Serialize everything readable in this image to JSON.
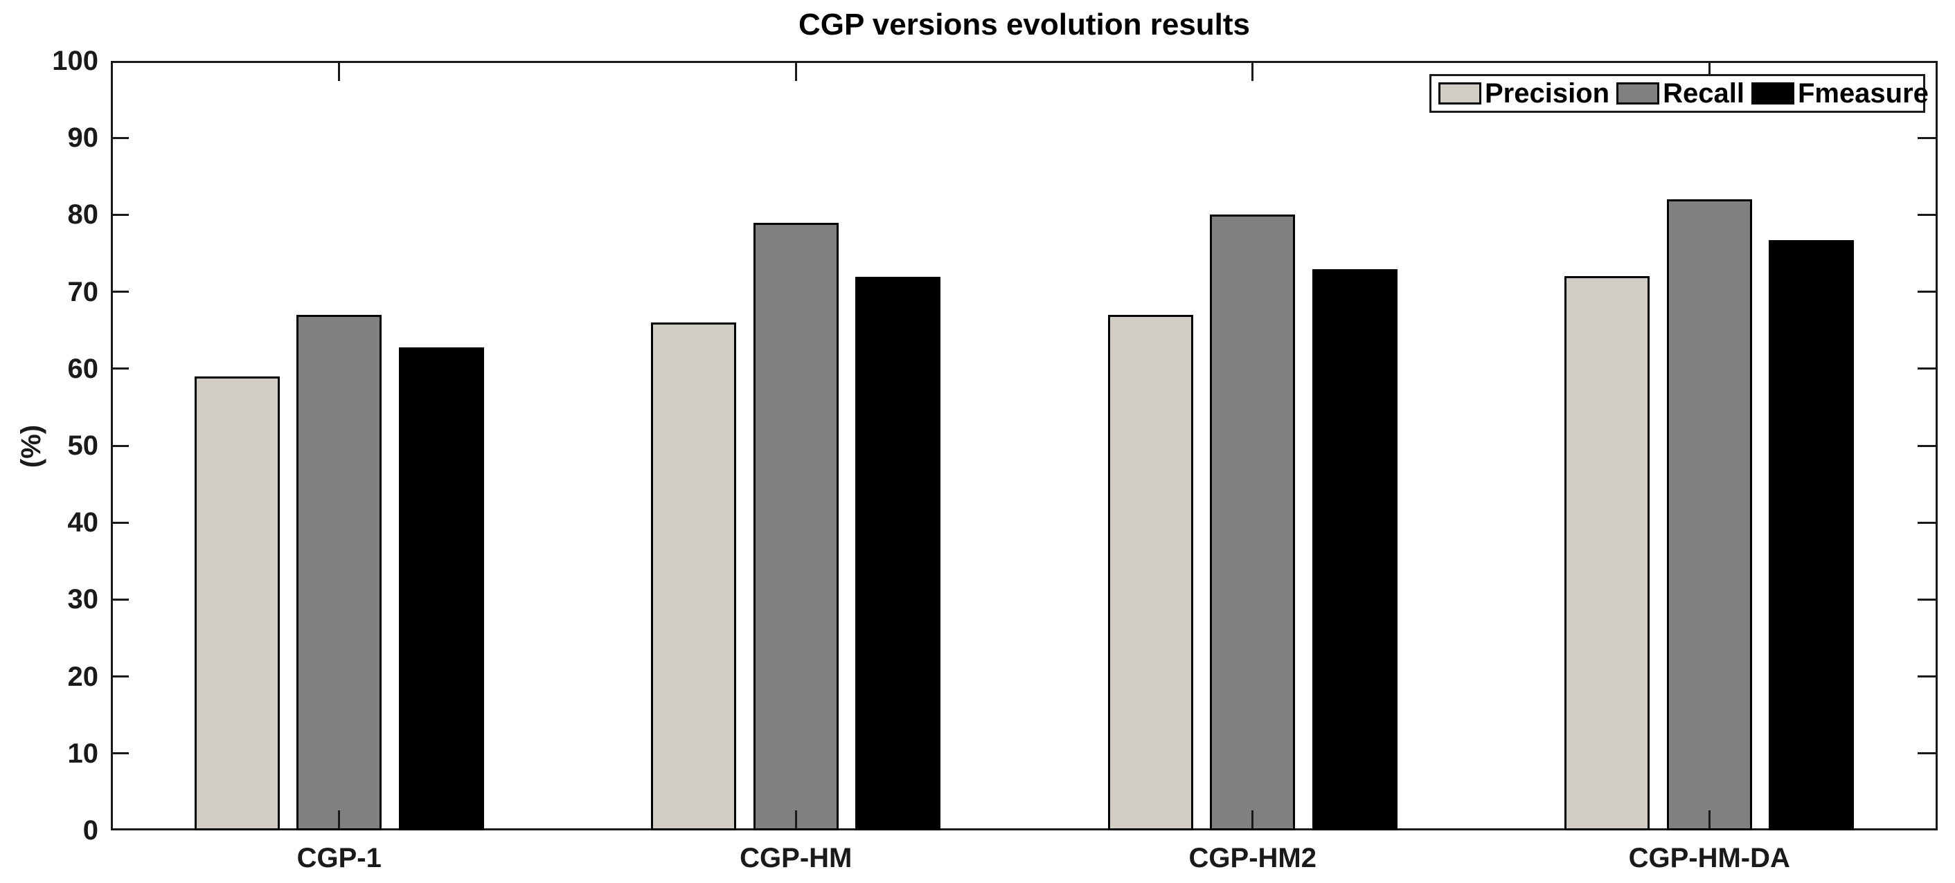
{
  "chart_data": {
    "type": "bar",
    "title": "CGP versions evolution results",
    "xlabel": "",
    "ylabel": "(%)",
    "ylim": [
      0,
      100
    ],
    "ytick_step": 10,
    "grid": false,
    "legend_position": "top-right",
    "categories": [
      "CGP-1",
      "CGP-HM",
      "CGP-HM2",
      "CGP-HM-DA"
    ],
    "series": [
      {
        "name": "Precision",
        "color": "#d2cec6",
        "values": [
          59,
          66,
          67,
          72
        ]
      },
      {
        "name": "Recall",
        "color": "#808080",
        "values": [
          67,
          79,
          80,
          82
        ]
      },
      {
        "name": "Fmeasure",
        "color": "#000000",
        "values": [
          62.8,
          71.9,
          72.9,
          76.7
        ]
      }
    ]
  }
}
